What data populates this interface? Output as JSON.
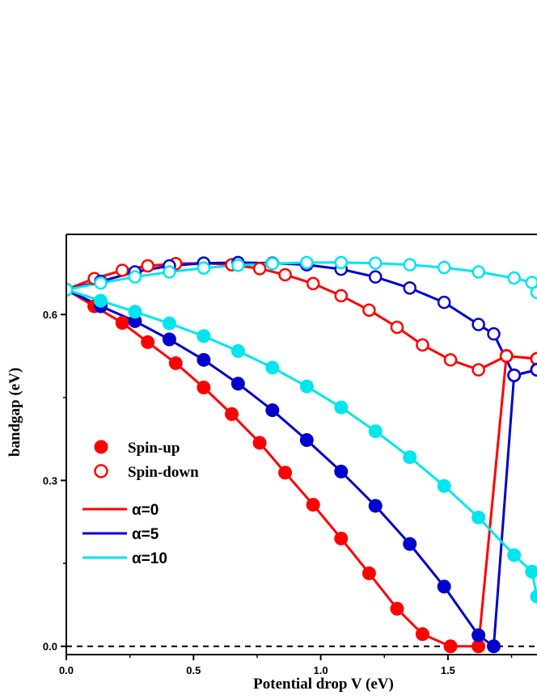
{
  "chart_data": {
    "type": "line",
    "xlabel": "Potential drop V (eV)",
    "ylabel": "bandgap (eV)",
    "xlim": [
      0,
      1.85
    ],
    "ylim": [
      -0.015,
      0.745
    ],
    "x_ticks": [
      0.0,
      0.5,
      1.0,
      1.5
    ],
    "x_tick_labels": [
      "0.0",
      "0.5",
      "1.0",
      "1.5"
    ],
    "y_ticks": [
      0.0,
      0.3,
      0.6
    ],
    "y_tick_labels": [
      "0.0",
      "0.3",
      "0.6"
    ],
    "reference_line": {
      "y": 0.0,
      "style": "dashed",
      "color": "#000000"
    },
    "legend": {
      "placement": "lower-left",
      "markers": [
        {
          "label": "Spin-up",
          "fill": "filled"
        },
        {
          "label": "Spin-down",
          "fill": "open"
        }
      ],
      "lines": [
        {
          "label": "α=0",
          "color": "#ff0000"
        },
        {
          "label": "α=5",
          "color": "#0000cc"
        },
        {
          "label": "α=10",
          "color": "#00e5ee"
        }
      ]
    },
    "series": [
      {
        "name": "α=0 Spin-up",
        "color": "#ff0000",
        "marker": "filled",
        "x": [
          0,
          0.11,
          0.22,
          0.32,
          0.43,
          0.54,
          0.65,
          0.76,
          0.86,
          0.97,
          1.08,
          1.19,
          1.3,
          1.4,
          1.51,
          1.62,
          1.73,
          1.85
        ],
        "y": [
          0.645,
          0.615,
          0.585,
          0.55,
          0.512,
          0.468,
          0.42,
          0.368,
          0.314,
          0.256,
          0.195,
          0.132,
          0.068,
          0.022,
          0.0,
          0.0,
          0.525,
          0.52
        ]
      },
      {
        "name": "α=0 Spin-down",
        "color": "#ff0000",
        "marker": "open",
        "x": [
          0,
          0.11,
          0.22,
          0.32,
          0.43,
          0.54,
          0.65,
          0.76,
          0.86,
          0.97,
          1.08,
          1.19,
          1.3,
          1.4,
          1.51,
          1.62,
          1.73,
          1.85
        ],
        "y": [
          0.645,
          0.665,
          0.68,
          0.688,
          0.692,
          0.693,
          0.69,
          0.683,
          0.672,
          0.656,
          0.634,
          0.608,
          0.577,
          0.545,
          0.518,
          0.5,
          0.525,
          0.52
        ]
      },
      {
        "name": "α=5 Spin-up",
        "color": "#0000cc",
        "marker": "filled",
        "x": [
          0,
          0.135,
          0.27,
          0.405,
          0.54,
          0.675,
          0.81,
          0.945,
          1.08,
          1.215,
          1.35,
          1.485,
          1.62,
          1.68,
          1.76,
          1.85
        ],
        "y": [
          0.645,
          0.615,
          0.588,
          0.555,
          0.518,
          0.475,
          0.427,
          0.373,
          0.316,
          0.254,
          0.185,
          0.108,
          0.02,
          0.0,
          0.49,
          0.5
        ]
      },
      {
        "name": "α=5 Spin-down",
        "color": "#0000cc",
        "marker": "open",
        "x": [
          0,
          0.135,
          0.27,
          0.405,
          0.54,
          0.675,
          0.81,
          0.945,
          1.08,
          1.215,
          1.35,
          1.485,
          1.62,
          1.68,
          1.76,
          1.85
        ],
        "y": [
          0.645,
          0.66,
          0.677,
          0.688,
          0.693,
          0.694,
          0.693,
          0.69,
          0.682,
          0.668,
          0.648,
          0.622,
          0.582,
          0.565,
          0.49,
          0.5
        ]
      },
      {
        "name": "α=10 Spin-up",
        "color": "#00e5ee",
        "marker": "filled",
        "x": [
          0,
          0.135,
          0.27,
          0.405,
          0.54,
          0.675,
          0.81,
          0.945,
          1.08,
          1.215,
          1.35,
          1.485,
          1.62,
          1.76,
          1.83,
          1.85
        ],
        "y": [
          0.645,
          0.625,
          0.605,
          0.584,
          0.561,
          0.534,
          0.504,
          0.47,
          0.432,
          0.389,
          0.342,
          0.29,
          0.233,
          0.165,
          0.135,
          0.09
        ]
      },
      {
        "name": "α=10 Spin-down",
        "color": "#00e5ee",
        "marker": "open",
        "x": [
          0,
          0.135,
          0.27,
          0.405,
          0.54,
          0.675,
          0.81,
          0.945,
          1.08,
          1.215,
          1.35,
          1.485,
          1.62,
          1.76,
          1.83,
          1.85
        ],
        "y": [
          0.645,
          0.657,
          0.668,
          0.677,
          0.684,
          0.689,
          0.692,
          0.694,
          0.694,
          0.693,
          0.69,
          0.685,
          0.677,
          0.666,
          0.658,
          0.64
        ]
      }
    ]
  }
}
